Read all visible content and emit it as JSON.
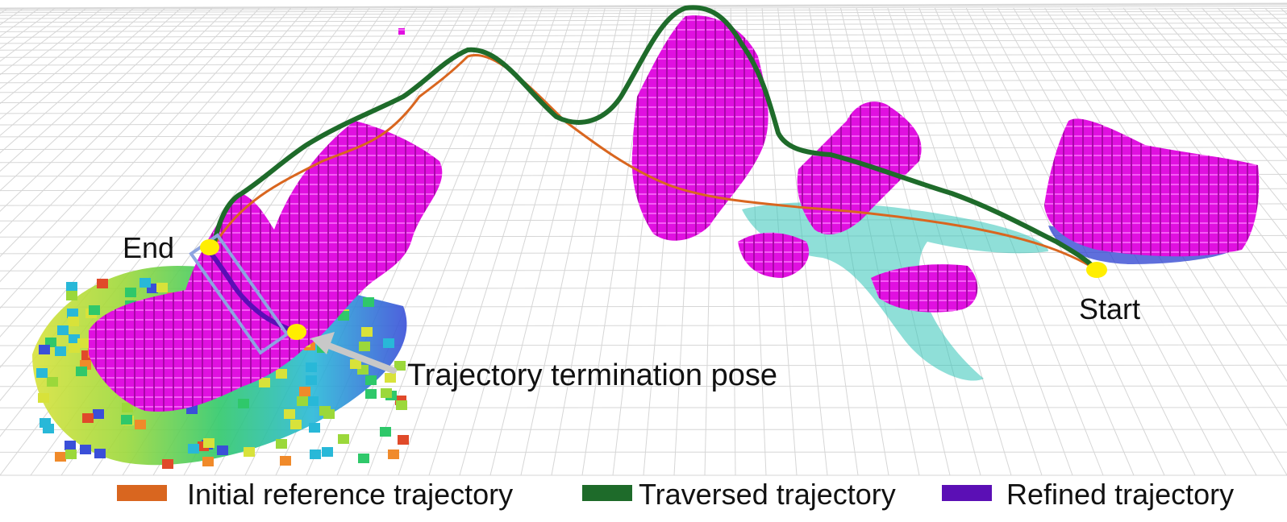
{
  "labels": {
    "end": "End",
    "start": "Start",
    "termination": "Trajectory termination pose"
  },
  "legend": [
    {
      "label": "Initial reference trajectory",
      "color": "#d9661f"
    },
    {
      "label": "Traversed trajectory",
      "color": "#1e6b2a"
    },
    {
      "label": "Refined trajectory",
      "color": "#5b0fb5"
    }
  ],
  "colors": {
    "map_voxels": "#e010e0",
    "marker": "#ffee00",
    "termination_box": "#8ea4e0",
    "arrow": "#c8c8c8"
  }
}
